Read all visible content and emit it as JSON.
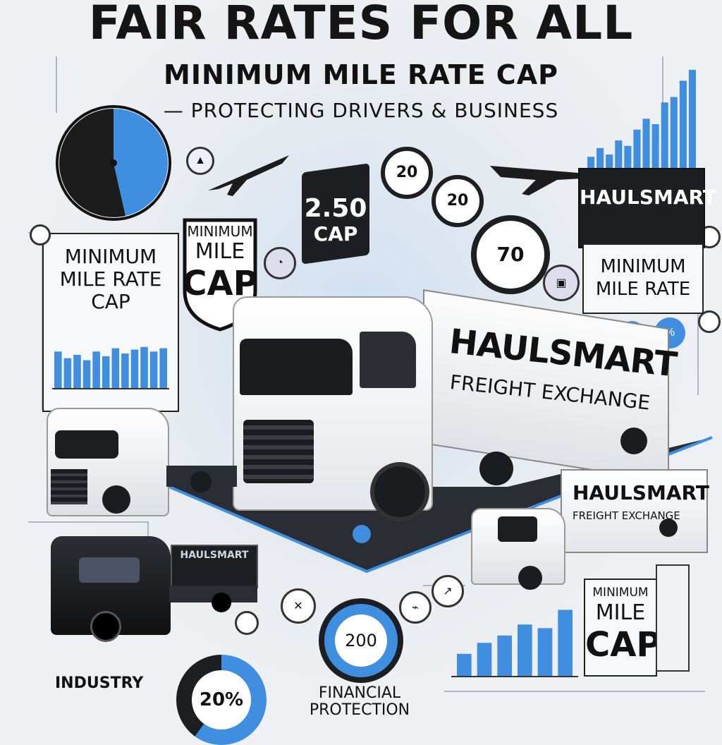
{
  "header": {
    "title": "FAIR RATES FOR ALL",
    "subtitle": "MINIMUM MILE RATE CAP",
    "tagline": "— PROTECTING DRIVERS & BUSINESS"
  },
  "left_panel": {
    "title_line1": "MINIMUM",
    "title_line2": "MILE RATE",
    "title_line3": "CAP",
    "bars": [
      0.55,
      0.45,
      0.5,
      0.42,
      0.55,
      0.48,
      0.6,
      0.52,
      0.58,
      0.62,
      0.55,
      0.6
    ]
  },
  "shield_badge": {
    "line1": "MINIMUM",
    "line2": "MILE",
    "line3": "CAP"
  },
  "cap_badge": {
    "value": "2.50",
    "label": "CAP"
  },
  "small_badges": {
    "badge_a": "20",
    "badge_b": "20",
    "gauge": "70",
    "counter_200": "200",
    "percent": "20%"
  },
  "right_top_panel": {
    "brand": "HAULSMART",
    "bars": [
      0.2,
      0.28,
      0.22,
      0.35,
      0.3,
      0.45,
      0.55,
      0.5,
      0.7,
      0.75,
      0.9,
      1.0
    ]
  },
  "right_mid_panel": {
    "line1": "MINIMUM",
    "line2": "MILE RATE"
  },
  "main_truck": {
    "brand": "HAULSMART",
    "tagline": "FREIGHT EXCHANGE"
  },
  "box_truck": {
    "brand": "HAULSMART",
    "tagline": "FREIGHT EXCHANGE"
  },
  "black_truck": {
    "brand": "HAULSMART"
  },
  "bottom_right_panel": {
    "line1": "MINIMUM",
    "line2": "MILE",
    "line3": "CAP",
    "bars": [
      0.3,
      0.45,
      0.55,
      0.7,
      0.65,
      0.9
    ]
  },
  "bottom_left": {
    "label": "INDUSTRY"
  },
  "bottom_center": {
    "line1": "FINANCIAL",
    "line2": "PROTECTION"
  },
  "colors": {
    "accent": "#3f8ee0",
    "dark": "#151515",
    "background": "#eef0f3"
  }
}
